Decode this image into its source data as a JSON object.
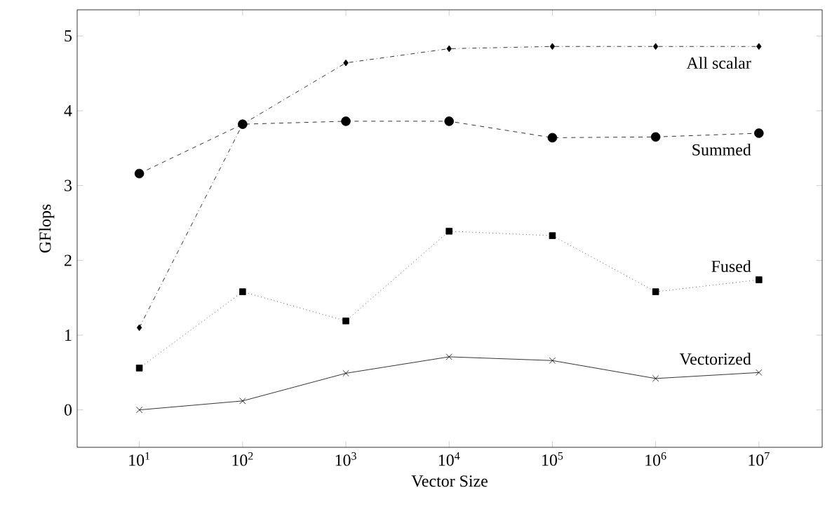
{
  "chart_data": {
    "type": "line",
    "xlabel": "Vector Size",
    "ylabel": "GFlops",
    "log": "x",
    "x": [
      10,
      100,
      1000,
      10000,
      100000,
      1000000,
      10000000
    ],
    "xlim": [
      2.5,
      41000000
    ],
    "ylim": [
      -0.5,
      5.35
    ],
    "xticks": [
      {
        "value": 10,
        "label": "10$^{1}$"
      },
      {
        "value": 100,
        "label": "10$^{2}$"
      },
      {
        "value": 1000,
        "label": "10$^{3}$"
      },
      {
        "value": 10000,
        "label": "10$^{4}$"
      },
      {
        "value": 100000,
        "label": "10$^{5}$"
      },
      {
        "value": 1000000,
        "label": "10$^{6}$"
      },
      {
        "value": 10000000,
        "label": "10$^{7}$"
      }
    ],
    "yticks": [
      0,
      1,
      2,
      3,
      4,
      5
    ],
    "grid": false,
    "legend": false,
    "series": [
      {
        "name": "All scalar",
        "color": "#000000",
        "marker": "diamond",
        "line_style": "dashdot",
        "values": [
          1.1,
          3.82,
          4.64,
          4.83,
          4.86,
          4.86,
          4.86
        ]
      },
      {
        "name": "Summed",
        "color": "#000000",
        "marker": "circle",
        "line_style": "dashed",
        "values": [
          3.16,
          3.82,
          3.86,
          3.86,
          3.64,
          3.65,
          3.7
        ]
      },
      {
        "name": "Fused",
        "color": "#000000",
        "marker": "square",
        "line_style": "dotted",
        "values": [
          0.56,
          1.58,
          1.19,
          2.39,
          2.33,
          1.58,
          1.74
        ]
      },
      {
        "name": "Vectorized",
        "color": "#000000",
        "marker": "cross",
        "line_style": "solid",
        "values": [
          0.0,
          0.12,
          0.49,
          0.71,
          0.66,
          0.42,
          0.5
        ]
      }
    ]
  }
}
